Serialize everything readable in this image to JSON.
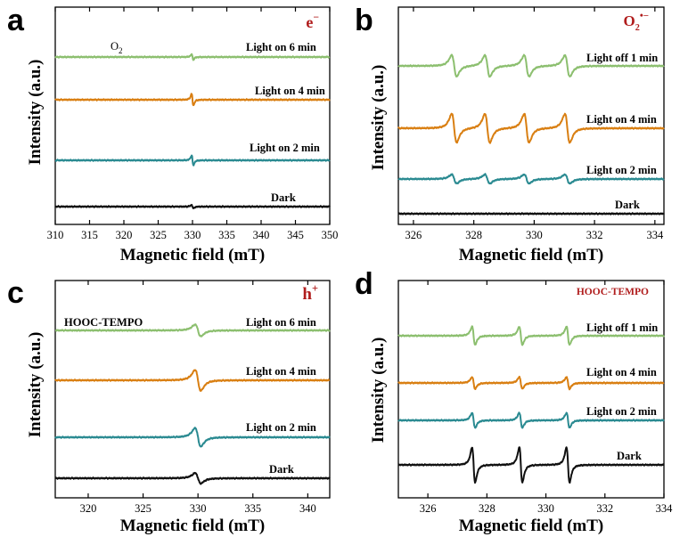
{
  "chart_data": [
    {
      "panel": "a",
      "type": "line",
      "xlabel": "Magnetic field (mT)",
      "ylabel": "Intensity (a.u.)",
      "xlim": [
        310,
        350
      ],
      "xticks": [
        310,
        315,
        320,
        325,
        330,
        335,
        340,
        345,
        350
      ],
      "corner_label": "e",
      "corner_sup": "−",
      "annotations": [
        {
          "text": "O",
          "sub": "2"
        }
      ],
      "series": [
        {
          "label": "Light on 6 min",
          "color": "#8cbf6f",
          "signal": "radical",
          "center": 330.0,
          "amplitude": 0.45
        },
        {
          "label": "Light on 4 min",
          "color": "#d97f12",
          "signal": "radical",
          "center": 330.0,
          "amplitude": 1.0
        },
        {
          "label": "Light on 2 min",
          "color": "#2a8a91",
          "signal": "radical",
          "center": 330.0,
          "amplitude": 0.85
        },
        {
          "label": "Dark",
          "color": "#111111",
          "signal": "radical",
          "center": 330.0,
          "amplitude": 0.3
        }
      ]
    },
    {
      "panel": "b",
      "type": "line",
      "xlabel": "Magnetic field (mT)",
      "ylabel": "Intensity (a.u.)",
      "xlim": [
        325.5,
        334.3
      ],
      "xticks": [
        326,
        328,
        330,
        332,
        334
      ],
      "corner_label": "O",
      "corner_sub": "2",
      "corner_sup": "•−",
      "series": [
        {
          "label": "Light off 1 min",
          "color": "#8cbf6f",
          "signal": "quartet",
          "lines": [
            327.35,
            328.45,
            329.75,
            331.1
          ],
          "amplitude": 1.0
        },
        {
          "label": "Light on 4 min",
          "color": "#d97f12",
          "signal": "quartet",
          "lines": [
            327.35,
            328.45,
            329.75,
            331.1
          ],
          "amplitude": 0.95
        },
        {
          "label": "Light on 2 min",
          "color": "#2a8a91",
          "signal": "quartet",
          "lines": [
            327.35,
            328.45,
            329.75,
            331.1
          ],
          "amplitude": 0.3
        },
        {
          "label": "Dark",
          "color": "#111111",
          "signal": "flat"
        }
      ]
    },
    {
      "panel": "c",
      "type": "line",
      "xlabel": "Magnetic field (mT)",
      "ylabel": "Intensity (a.u.)",
      "xlim": [
        317,
        342
      ],
      "xticks": [
        320,
        325,
        330,
        335,
        340
      ],
      "corner_label": "h",
      "corner_sup": "+",
      "annotations": [
        {
          "text": "HOOC-TEMPO"
        }
      ],
      "series": [
        {
          "label": "Light on 6 min",
          "color": "#8cbf6f",
          "signal": "broad",
          "center": 330.0,
          "amplitude": 0.55
        },
        {
          "label": "Light on 4 min",
          "color": "#d97f12",
          "signal": "broad",
          "center": 330.0,
          "amplitude": 0.9
        },
        {
          "label": "Light on 2 min",
          "color": "#2a8a91",
          "signal": "broad",
          "center": 330.0,
          "amplitude": 0.8
        },
        {
          "label": "Dark",
          "color": "#111111",
          "signal": "broad",
          "center": 330.0,
          "amplitude": 0.45
        }
      ]
    },
    {
      "panel": "d",
      "type": "line",
      "xlabel": "Magnetic field (mT)",
      "ylabel": "Intensity (a.u.)",
      "xlim": [
        325,
        334
      ],
      "xticks": [
        326,
        328,
        330,
        332,
        334
      ],
      "corner_label": "HOOC-TEMPO",
      "series": [
        {
          "label": "Light off 1 min",
          "color": "#8cbf6f",
          "signal": "triplet",
          "lines": [
            327.55,
            329.15,
            330.75
          ],
          "amplitude": 0.85
        },
        {
          "label": "Light on 4 min",
          "color": "#d97f12",
          "signal": "triplet",
          "lines": [
            327.55,
            329.15,
            330.75
          ],
          "amplitude": 0.3
        },
        {
          "label": "Light on 2 min",
          "color": "#2a8a91",
          "signal": "triplet",
          "lines": [
            327.55,
            329.15,
            330.75
          ],
          "amplitude": 0.38
        },
        {
          "label": "Dark",
          "color": "#111111",
          "signal": "triplet",
          "lines": [
            327.55,
            329.15,
            330.75
          ],
          "amplitude": 0.9
        }
      ]
    }
  ]
}
